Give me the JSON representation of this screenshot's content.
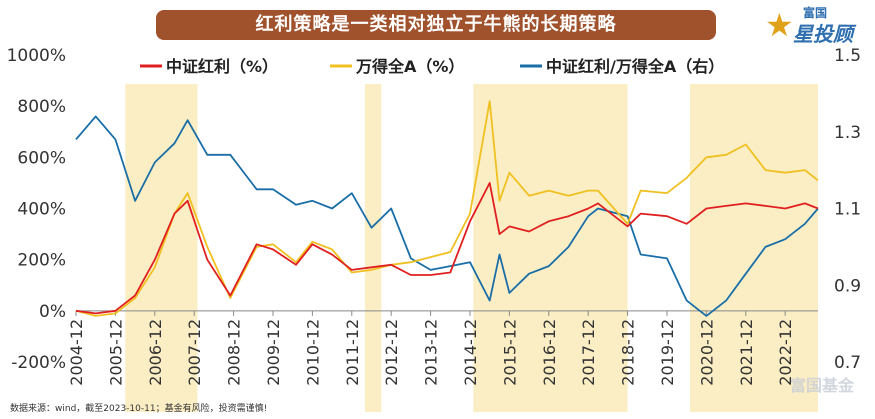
{
  "header": {
    "title": "红利策略是一类相对独立于牛熊的长期策略"
  },
  "brand": {
    "small": "富国",
    "big": "星投顾",
    "star_color": "#e0a21a"
  },
  "footer": {
    "source": "数据来源：wind，截至2023-10-11；基金有风险，投资需谨慎!",
    "watermark": "富国基金"
  },
  "chart_data": {
    "type": "line",
    "title": "",
    "x_labels": [
      "2004-12",
      "2005-12",
      "2006-12",
      "2007-12",
      "2008-12",
      "2009-12",
      "2010-12",
      "2011-12",
      "2012-12",
      "2013-12",
      "2014-12",
      "2015-12",
      "2016-12",
      "2017-12",
      "2018-12",
      "2019-12",
      "2020-12",
      "2021-12",
      "2022-12"
    ],
    "x_range": [
      "2004-12",
      "2023-10"
    ],
    "ylim_left": [
      -200,
      1000
    ],
    "yticks_left": [
      "-200%",
      "0%",
      "200%",
      "400%",
      "600%",
      "800%",
      "1000%"
    ],
    "ylim_right": [
      0.7,
      1.5
    ],
    "yticks_right": [
      "0.7",
      "0.9",
      "1.1",
      "1.3",
      "1.5"
    ],
    "grid": false,
    "legend_position": "top",
    "shaded_periods": [
      {
        "start": "2006-03",
        "end": "2008-01"
      },
      {
        "start": "2012-04",
        "end": "2012-09"
      },
      {
        "start": "2015-01",
        "end": "2018-12"
      },
      {
        "start": "2020-07",
        "end": "2023-10"
      }
    ],
    "shade_color": "#fbeec4",
    "series": [
      {
        "name": "中证红利（%）",
        "axis": "left",
        "color": "#e02020",
        "points": [
          [
            "2004-12",
            0
          ],
          [
            "2005-06",
            -10
          ],
          [
            "2005-12",
            0
          ],
          [
            "2006-06",
            60
          ],
          [
            "2006-12",
            200
          ],
          [
            "2007-06",
            380
          ],
          [
            "2007-10",
            430
          ],
          [
            "2008-04",
            200
          ],
          [
            "2008-11",
            60
          ],
          [
            "2009-07",
            260
          ],
          [
            "2009-12",
            240
          ],
          [
            "2010-07",
            180
          ],
          [
            "2010-12",
            260
          ],
          [
            "2011-06",
            220
          ],
          [
            "2011-12",
            160
          ],
          [
            "2012-06",
            170
          ],
          [
            "2012-12",
            180
          ],
          [
            "2013-06",
            140
          ],
          [
            "2013-12",
            140
          ],
          [
            "2014-06",
            150
          ],
          [
            "2014-12",
            350
          ],
          [
            "2015-06",
            500
          ],
          [
            "2015-09",
            300
          ],
          [
            "2015-12",
            330
          ],
          [
            "2016-06",
            310
          ],
          [
            "2016-12",
            350
          ],
          [
            "2017-06",
            370
          ],
          [
            "2017-12",
            400
          ],
          [
            "2018-03",
            420
          ],
          [
            "2018-12",
            330
          ],
          [
            "2019-04",
            380
          ],
          [
            "2019-12",
            370
          ],
          [
            "2020-06",
            340
          ],
          [
            "2020-12",
            400
          ],
          [
            "2021-06",
            410
          ],
          [
            "2021-12",
            420
          ],
          [
            "2022-06",
            410
          ],
          [
            "2022-12",
            400
          ],
          [
            "2023-06",
            420
          ],
          [
            "2023-10",
            400
          ]
        ]
      },
      {
        "name": "万得全A（%）",
        "axis": "left",
        "color": "#f0c020",
        "points": [
          [
            "2004-12",
            0
          ],
          [
            "2005-06",
            -20
          ],
          [
            "2005-12",
            -10
          ],
          [
            "2006-06",
            50
          ],
          [
            "2006-12",
            170
          ],
          [
            "2007-06",
            380
          ],
          [
            "2007-10",
            460
          ],
          [
            "2008-04",
            250
          ],
          [
            "2008-11",
            50
          ],
          [
            "2009-07",
            250
          ],
          [
            "2009-12",
            260
          ],
          [
            "2010-07",
            190
          ],
          [
            "2010-12",
            270
          ],
          [
            "2011-06",
            240
          ],
          [
            "2011-12",
            150
          ],
          [
            "2012-06",
            160
          ],
          [
            "2012-12",
            180
          ],
          [
            "2013-06",
            190
          ],
          [
            "2013-12",
            210
          ],
          [
            "2014-06",
            230
          ],
          [
            "2014-12",
            380
          ],
          [
            "2015-06",
            820
          ],
          [
            "2015-09",
            430
          ],
          [
            "2015-12",
            540
          ],
          [
            "2016-06",
            450
          ],
          [
            "2016-12",
            470
          ],
          [
            "2017-06",
            450
          ],
          [
            "2017-12",
            470
          ],
          [
            "2018-03",
            470
          ],
          [
            "2018-12",
            340
          ],
          [
            "2019-04",
            470
          ],
          [
            "2019-12",
            460
          ],
          [
            "2020-06",
            520
          ],
          [
            "2020-12",
            600
          ],
          [
            "2021-06",
            610
          ],
          [
            "2021-12",
            650
          ],
          [
            "2022-06",
            550
          ],
          [
            "2022-12",
            540
          ],
          [
            "2023-06",
            550
          ],
          [
            "2023-10",
            510
          ]
        ]
      },
      {
        "name": "中证红利/万得全A（右）",
        "axis": "right",
        "color": "#1a6ea8",
        "points": [
          [
            "2004-12",
            1.28
          ],
          [
            "2005-06",
            1.34
          ],
          [
            "2005-12",
            1.28
          ],
          [
            "2006-06",
            1.12
          ],
          [
            "2006-12",
            1.22
          ],
          [
            "2007-06",
            1.27
          ],
          [
            "2007-10",
            1.33
          ],
          [
            "2008-04",
            1.24
          ],
          [
            "2008-11",
            1.24
          ],
          [
            "2009-07",
            1.15
          ],
          [
            "2009-12",
            1.15
          ],
          [
            "2010-07",
            1.11
          ],
          [
            "2010-12",
            1.12
          ],
          [
            "2011-06",
            1.1
          ],
          [
            "2011-12",
            1.14
          ],
          [
            "2012-06",
            1.05
          ],
          [
            "2012-12",
            1.1
          ],
          [
            "2013-06",
            0.97
          ],
          [
            "2013-12",
            0.94
          ],
          [
            "2014-06",
            0.95
          ],
          [
            "2014-12",
            0.96
          ],
          [
            "2015-06",
            0.86
          ],
          [
            "2015-09",
            0.98
          ],
          [
            "2015-12",
            0.88
          ],
          [
            "2016-06",
            0.93
          ],
          [
            "2016-12",
            0.95
          ],
          [
            "2017-06",
            1.0
          ],
          [
            "2017-12",
            1.08
          ],
          [
            "2018-03",
            1.1
          ],
          [
            "2018-12",
            1.08
          ],
          [
            "2019-04",
            0.98
          ],
          [
            "2019-12",
            0.97
          ],
          [
            "2020-06",
            0.86
          ],
          [
            "2020-12",
            0.82
          ],
          [
            "2021-06",
            0.86
          ],
          [
            "2021-12",
            0.93
          ],
          [
            "2022-06",
            1.0
          ],
          [
            "2022-12",
            1.02
          ],
          [
            "2023-06",
            1.06
          ],
          [
            "2023-10",
            1.1
          ]
        ]
      }
    ]
  }
}
